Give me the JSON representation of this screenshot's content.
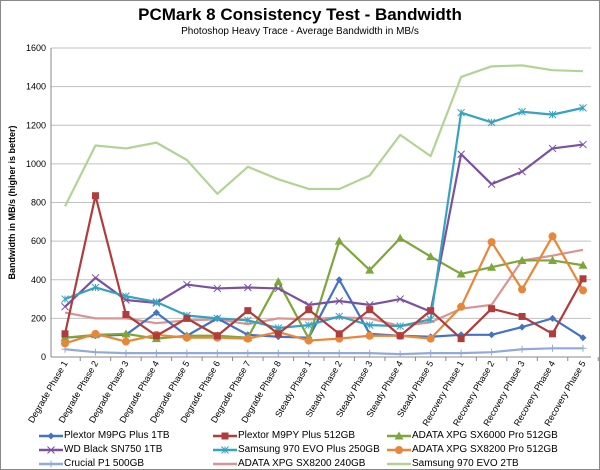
{
  "chart_data": {
    "type": "line",
    "title": "PCMark 8 Consistency Test - Bandwidth",
    "subtitle": "Photoshop Heavy Trace - Average Bandwidth in MB/s",
    "xlabel": "",
    "ylabel": "Bandwidth in MB/s (higher is better)",
    "ylim": [
      0,
      1600
    ],
    "yticks": [
      0,
      200,
      400,
      600,
      800,
      1000,
      1200,
      1400,
      1600
    ],
    "grid": true,
    "legend_position": "bottom",
    "categories": [
      "Degrade Phase 1",
      "Degrade Phase 2",
      "Degrade Phase 3",
      "Degrade Phase 4",
      "Degrade Phase 5",
      "Degrade Phase 6",
      "Degrade Phase 7",
      "Degrade Phase 8",
      "Steady Phase 1",
      "Steady Phase 2",
      "Steady Phase 3",
      "Steady Phase 4",
      "Steady Phase 5",
      "Recovery Phase 1",
      "Recovery Phase 2",
      "Recovery Phase 3",
      "Recovery Phase 4",
      "Recovery Phase 5"
    ],
    "series": [
      {
        "name": "Plextor M9PG Plus 1TB",
        "color": "#4472c4",
        "marker": "diamond",
        "values": [
          100,
          110,
          115,
          230,
          110,
          200,
          115,
          105,
          100,
          400,
          120,
          110,
          105,
          115,
          115,
          155,
          200,
          100
        ]
      },
      {
        "name": "Plextor M9PY Plus 512GB",
        "color": "#b03c3c",
        "marker": "square",
        "values": [
          120,
          835,
          220,
          110,
          200,
          110,
          240,
          120,
          245,
          120,
          245,
          110,
          240,
          95,
          250,
          210,
          120,
          405
        ]
      },
      {
        "name": "ADATA XPG SX6000 Pro 512GB",
        "color": "#7ea63a",
        "marker": "triangle",
        "values": [
          100,
          115,
          120,
          95,
          110,
          110,
          100,
          390,
          95,
          600,
          450,
          615,
          520,
          430,
          465,
          500,
          500,
          475
        ]
      },
      {
        "name": "WD Black SN750 1TB",
        "color": "#7a52a0",
        "marker": "x",
        "values": [
          260,
          410,
          295,
          280,
          375,
          355,
          360,
          355,
          270,
          290,
          270,
          300,
          235,
          1050,
          895,
          960,
          1080,
          1100
        ]
      },
      {
        "name": "Samsung 970 EVO Plus 250GB",
        "color": "#36a3c0",
        "marker": "star",
        "values": [
          300,
          360,
          315,
          285,
          215,
          200,
          190,
          150,
          165,
          210,
          165,
          160,
          195,
          1265,
          1215,
          1270,
          1255,
          1290
        ]
      },
      {
        "name": "ADATA XPG SX8200 Pro 512GB",
        "color": "#e8873a",
        "marker": "circle",
        "values": [
          70,
          120,
          80,
          115,
          100,
          100,
          95,
          130,
          85,
          95,
          110,
          110,
          95,
          260,
          595,
          350,
          625,
          345
        ]
      },
      {
        "name": "Crucial P1 500GB",
        "color": "#93a9d9",
        "marker": "plus",
        "values": [
          40,
          25,
          20,
          20,
          20,
          20,
          20,
          20,
          20,
          20,
          20,
          15,
          20,
          20,
          25,
          40,
          45,
          45
        ]
      },
      {
        "name": "ADATA XPG SX8200 240GB",
        "color": "#d99594",
        "marker": "none",
        "values": [
          230,
          200,
          200,
          175,
          190,
          195,
          170,
          200,
          195,
          205,
          200,
          160,
          180,
          250,
          270,
          500,
          525,
          555
        ]
      },
      {
        "name": "Samsung 970 EVO 2TB",
        "color": "#b3d396",
        "marker": "none",
        "values": [
          780,
          1095,
          1080,
          1110,
          1020,
          845,
          985,
          920,
          870,
          870,
          940,
          1150,
          1040,
          1450,
          1505,
          1510,
          1485,
          1480
        ]
      }
    ]
  }
}
